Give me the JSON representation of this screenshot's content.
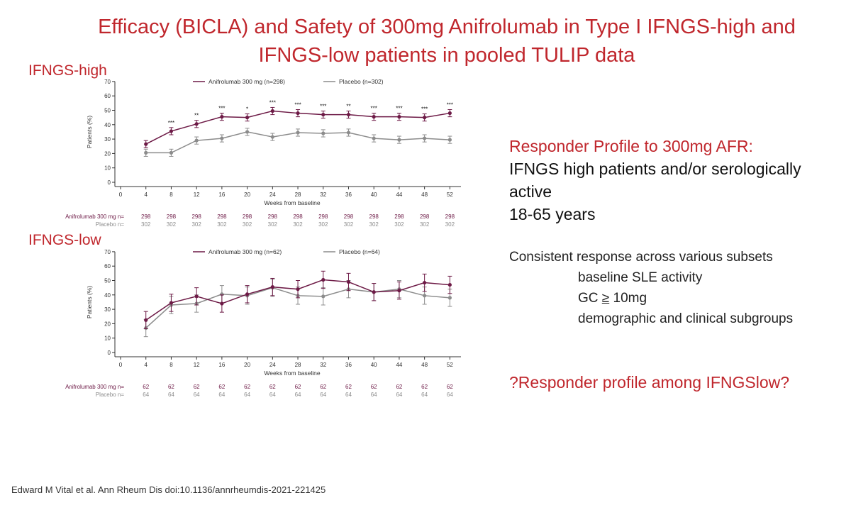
{
  "title_line1": "Efficacy (BICLA) and Safety of 300mg Anifrolumab in Type I IFNGS-high and",
  "title_line2": "IFNGS-low patients in pooled TULIP data",
  "panel_high_label": "IFNGS-high",
  "panel_low_label": "IFNGS-low",
  "colors": {
    "title_red": "#c0272d",
    "anifrolumab": "#6d1a46",
    "placebo": "#8c8c8c"
  },
  "right_panel": {
    "heading": "Responder Profile to 300mg AFR:",
    "line1": "IFNGS high patients and/or serologically",
    "line2": "active",
    "line3": "18-65 years",
    "consistent": "Consistent response across various subsets",
    "sub1": "baseline SLE activity",
    "sub2_prefix": "GC ",
    "sub2_ge": "≥",
    "sub2_suffix": " 10mg",
    "sub3": "demographic and clinical subgroups",
    "question": "?Responder profile among IFNGSlow?"
  },
  "citation": "Edward M Vital et al. Ann Rheum Dis doi:10.1136/annrheumdis-2021-221425",
  "chart_data": [
    {
      "type": "line",
      "panel": "IFNGS-high",
      "xlabel": "Weeks from baseline",
      "ylabel": "Patients (%)",
      "x": [
        0,
        4,
        8,
        12,
        16,
        20,
        24,
        28,
        32,
        36,
        40,
        44,
        48,
        52
      ],
      "yticks": [
        0,
        10,
        20,
        30,
        40,
        50,
        60,
        70
      ],
      "ylim": [
        0,
        70
      ],
      "legend_position": "top",
      "series": [
        {
          "name": "Anifrolumab 300 mg (n=298)",
          "color": "#6d1a46",
          "x": [
            4,
            8,
            12,
            16,
            20,
            24,
            28,
            32,
            36,
            40,
            44,
            48,
            52
          ],
          "values": [
            26.5,
            35.5,
            40.5,
            45.5,
            45,
            49.5,
            48,
            47,
            47,
            45.5,
            45.5,
            45,
            48
          ],
          "err": [
            2.5,
            2.5,
            2.5,
            2.5,
            2.5,
            2.5,
            2.5,
            2.5,
            2.5,
            2.5,
            2.5,
            2.5,
            2.5
          ]
        },
        {
          "name": "Placebo (n=302)",
          "color": "#8c8c8c",
          "x": [
            4,
            8,
            12,
            16,
            20,
            24,
            28,
            32,
            36,
            40,
            44,
            48,
            52
          ],
          "values": [
            20.5,
            20.5,
            29,
            30.5,
            35,
            31.5,
            34.5,
            34,
            34.5,
            30.5,
            29.5,
            30.5,
            29.5
          ],
          "err": [
            2.5,
            2.5,
            2.5,
            2.5,
            2.5,
            2.5,
            2.5,
            2.5,
            2.5,
            2.5,
            2.5,
            2.5,
            2.5
          ]
        }
      ],
      "significance": [
        "",
        "***",
        "**",
        "***",
        "*",
        "***",
        "***",
        "***",
        "**",
        "***",
        "***",
        "***",
        "***"
      ],
      "n_rows": [
        {
          "label": "Anifrolumab 300 mg n=",
          "color": "#6d1a46",
          "values": [
            "298",
            "298",
            "298",
            "298",
            "298",
            "298",
            "298",
            "298",
            "298",
            "298",
            "298",
            "298",
            "298"
          ]
        },
        {
          "label": "Placebo n=",
          "color": "#8c8c8c",
          "values": [
            "302",
            "302",
            "302",
            "302",
            "302",
            "302",
            "302",
            "302",
            "302",
            "302",
            "302",
            "302",
            "302"
          ]
        }
      ]
    },
    {
      "type": "line",
      "panel": "IFNGS-low",
      "xlabel": "Weeks from baseline",
      "ylabel": "Patients (%)",
      "x": [
        0,
        4,
        8,
        12,
        16,
        20,
        24,
        28,
        32,
        36,
        40,
        44,
        48,
        52
      ],
      "yticks": [
        0,
        10,
        20,
        30,
        40,
        50,
        60,
        70
      ],
      "ylim": [
        0,
        70
      ],
      "legend_position": "top",
      "series": [
        {
          "name": "Anifrolumab 300 mg (n=62)",
          "color": "#6d1a46",
          "x": [
            4,
            8,
            12,
            16,
            20,
            24,
            28,
            32,
            36,
            40,
            44,
            48,
            52
          ],
          "values": [
            22.5,
            34.5,
            39,
            34,
            40.5,
            45.5,
            44,
            50.5,
            49,
            42,
            43,
            48.5,
            47
          ],
          "err": [
            6,
            6,
            6,
            6,
            6,
            6,
            6,
            6,
            6,
            6,
            6,
            6,
            6
          ]
        },
        {
          "name": "Placebo (n=64)",
          "color": "#8c8c8c",
          "x": [
            4,
            8,
            12,
            16,
            20,
            24,
            28,
            32,
            36,
            40,
            44,
            48,
            52
          ],
          "values": [
            17,
            33,
            34,
            40.5,
            39.5,
            45,
            39.5,
            39,
            44,
            42,
            44,
            39.5,
            38
          ],
          "err": [
            6,
            6,
            6,
            6,
            6,
            6,
            6,
            6,
            6,
            6,
            6,
            6,
            6
          ]
        }
      ],
      "n_rows": [
        {
          "label": "Anifrolumab 300 mg n=",
          "color": "#6d1a46",
          "values": [
            "62",
            "62",
            "62",
            "62",
            "62",
            "62",
            "62",
            "62",
            "62",
            "62",
            "62",
            "62",
            "62"
          ]
        },
        {
          "label": "Placebo n=",
          "color": "#8c8c8c",
          "values": [
            "64",
            "64",
            "64",
            "64",
            "64",
            "64",
            "64",
            "64",
            "64",
            "64",
            "64",
            "64",
            "64"
          ]
        }
      ]
    }
  ]
}
